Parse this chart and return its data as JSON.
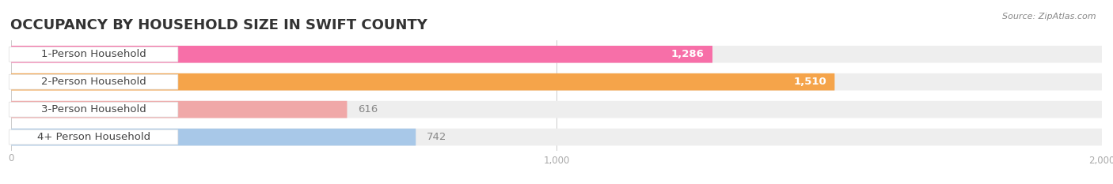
{
  "title": "OCCUPANCY BY HOUSEHOLD SIZE IN SWIFT COUNTY",
  "source": "Source: ZipAtlas.com",
  "categories": [
    "1-Person Household",
    "2-Person Household",
    "3-Person Household",
    "4+ Person Household"
  ],
  "values": [
    1286,
    1510,
    616,
    742
  ],
  "bar_colors": [
    "#f76fa8",
    "#f5a44a",
    "#f0a8a8",
    "#a8c8e8"
  ],
  "bar_bg_color": "#eeeeee",
  "label_pill_color": "#ffffff",
  "xlim": [
    0,
    2000
  ],
  "xticks": [
    0,
    1000,
    2000
  ],
  "background_color": "#ffffff",
  "title_fontsize": 13,
  "label_fontsize": 9.5,
  "value_fontsize": 9.5,
  "bar_height": 0.62,
  "bar_gap": 0.18
}
